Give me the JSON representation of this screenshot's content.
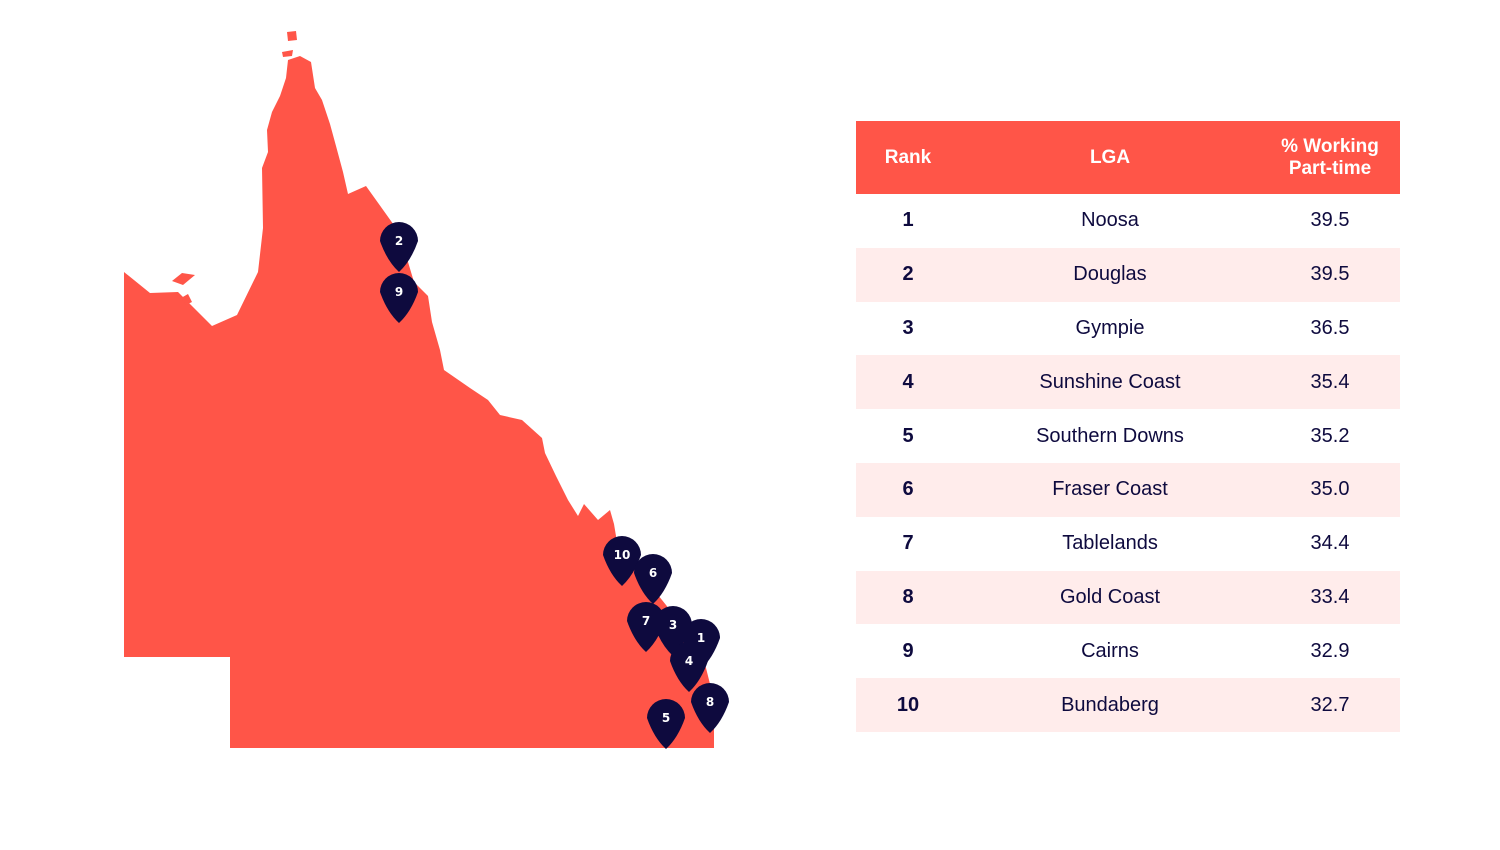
{
  "colors": {
    "land": "#ff5548",
    "pin": "#0e0a3e",
    "header": "#ff5548",
    "row_alt": "#ffeceb",
    "text": "#0e0a3e"
  },
  "table": {
    "headers": {
      "rank": "Rank",
      "lga": "LGA",
      "pct_line1": "% Working",
      "pct_line2": "Part-time"
    },
    "rows": [
      {
        "rank": "1",
        "lga": "Noosa",
        "pct": "39.5"
      },
      {
        "rank": "2",
        "lga": "Douglas",
        "pct": "39.5"
      },
      {
        "rank": "3",
        "lga": "Gympie",
        "pct": "36.5"
      },
      {
        "rank": "4",
        "lga": "Sunshine Coast",
        "pct": "35.4"
      },
      {
        "rank": "5",
        "lga": "Southern Downs",
        "pct": "35.2"
      },
      {
        "rank": "6",
        "lga": "Fraser Coast",
        "pct": "35.0"
      },
      {
        "rank": "7",
        "lga": "Tablelands",
        "pct": "34.4"
      },
      {
        "rank": "8",
        "lga": "Gold Coast",
        "pct": "33.4"
      },
      {
        "rank": "9",
        "lga": "Cairns",
        "pct": "32.9"
      },
      {
        "rank": "10",
        "lga": "Bundaberg",
        "pct": "32.7"
      }
    ]
  },
  "map": {
    "region_icon": "queensland-outline",
    "pins": [
      {
        "label": "2"
      },
      {
        "label": "9"
      },
      {
        "label": "10"
      },
      {
        "label": "6"
      },
      {
        "label": "7"
      },
      {
        "label": "3"
      },
      {
        "label": "1"
      },
      {
        "label": "4"
      },
      {
        "label": "8"
      },
      {
        "label": "5"
      }
    ]
  }
}
